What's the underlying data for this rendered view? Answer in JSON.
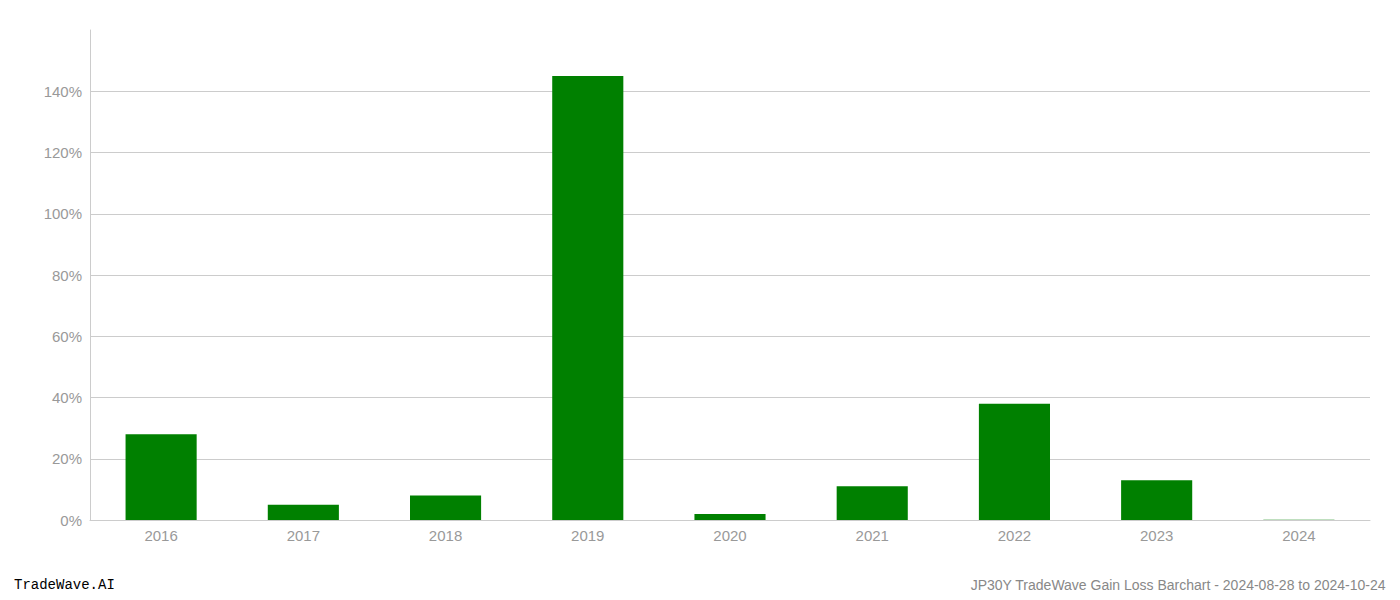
{
  "chart_data": {
    "type": "bar",
    "categories": [
      "2016",
      "2017",
      "2018",
      "2019",
      "2020",
      "2021",
      "2022",
      "2023",
      "2024"
    ],
    "values": [
      0.28,
      0.05,
      0.08,
      1.45,
      0.02,
      0.11,
      0.38,
      0.13,
      0.001
    ],
    "color": "#008000",
    "ylim": [
      0,
      1.6
    ],
    "yticks": [
      {
        "value": 0.0,
        "label": "0%"
      },
      {
        "value": 0.2,
        "label": "20%"
      },
      {
        "value": 0.4,
        "label": "40%"
      },
      {
        "value": 0.6,
        "label": "60%"
      },
      {
        "value": 0.8,
        "label": "80%"
      },
      {
        "value": 1.0,
        "label": "100%"
      },
      {
        "value": 1.2,
        "label": "120%"
      },
      {
        "value": 1.4,
        "label": "140%"
      }
    ],
    "grid": true,
    "annotations": [
      "TradeWave.AI",
      "JP30Y TradeWave Gain Loss Barchart - 2024-08-28 to 2024-10-24"
    ]
  }
}
